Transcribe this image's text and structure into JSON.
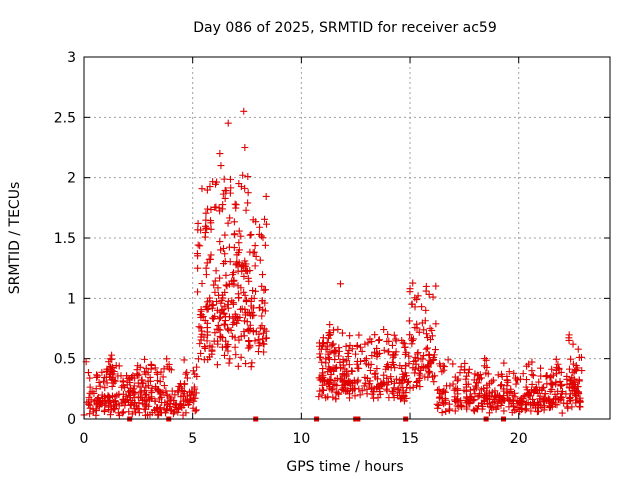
{
  "chart_data": {
    "type": "scatter",
    "title": "Day 086 of 2025, SRMTID for receiver ac59",
    "xlabel": "GPS time / hours",
    "ylabel": "SRMTID / TECUs",
    "xlim": [
      0,
      24.2
    ],
    "ylim": [
      0,
      3
    ],
    "xticks": [
      0,
      5,
      10,
      15,
      20
    ],
    "xtick_labels": [
      "0",
      "5",
      "10",
      "15",
      "20"
    ],
    "yticks": [
      0,
      0.5,
      1,
      1.5,
      2,
      2.5,
      3
    ],
    "ytick_labels": [
      "0",
      "0.5",
      "1",
      "1.5",
      "2",
      "2.5",
      "3"
    ],
    "grid": true,
    "marker": "+",
    "color": "#e00000",
    "series": [
      {
        "name": "SRMTID",
        "segments": [
          {
            "x_start": 0.0,
            "x_end": 5.2,
            "base": 0.18,
            "spread": 0.22,
            "count": 330
          },
          {
            "x_start": 1.1,
            "x_end": 1.3,
            "base": 0.45,
            "spread": 0.22,
            "count": 14
          },
          {
            "x_start": 5.2,
            "x_end": 8.4,
            "base": 0.95,
            "spread": 0.75,
            "count": 300
          },
          {
            "x_start": 6.1,
            "x_end": 7.6,
            "base": 1.55,
            "spread": 0.75,
            "count": 30
          },
          {
            "x_start": 10.8,
            "x_end": 14.9,
            "base": 0.35,
            "spread": 0.3,
            "count": 300
          },
          {
            "x_start": 14.9,
            "x_end": 16.2,
            "base": 0.55,
            "spread": 0.45,
            "count": 90
          },
          {
            "x_start": 16.2,
            "x_end": 22.9,
            "base": 0.2,
            "spread": 0.22,
            "count": 400
          },
          {
            "x_start": 22.3,
            "x_end": 22.8,
            "base": 0.35,
            "spread": 0.25,
            "count": 25
          }
        ],
        "highlights": [
          {
            "x": 7.35,
            "y": 2.55
          },
          {
            "x": 7.4,
            "y": 2.25
          },
          {
            "x": 6.25,
            "y": 2.2
          },
          {
            "x": 6.3,
            "y": 2.1
          },
          {
            "x": 7.3,
            "y": 2.02
          },
          {
            "x": 11.8,
            "y": 1.12
          },
          {
            "x": 15.0,
            "y": 1.08
          },
          {
            "x": 22.5,
            "y": 0.62
          }
        ]
      }
    ],
    "zero_markers_x": [
      2.1,
      3.9,
      7.9,
      10.7,
      12.5,
      12.6,
      14.8,
      18.5,
      19.3
    ]
  }
}
